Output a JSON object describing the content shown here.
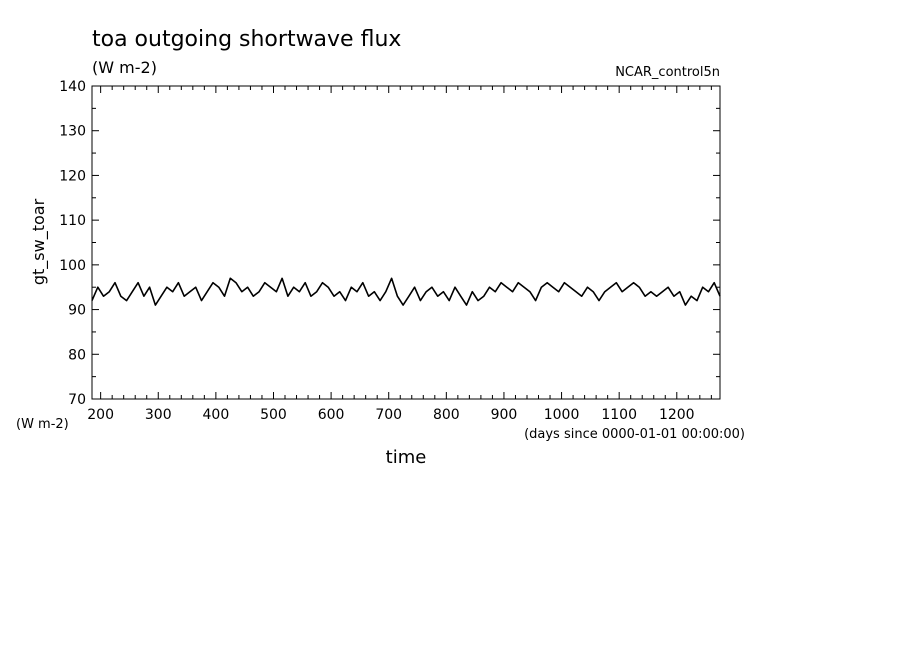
{
  "chart_data": {
    "type": "line",
    "title": "toa outgoing shortwave flux",
    "subtitle": "(W m-2)",
    "dataset_label": "NCAR_control5n",
    "xlabel": "time",
    "x_units": "(days since 0000-01-01 00:00:00)",
    "ylabel": "gt_sw_toar",
    "y_units": "(W m-2)",
    "xlim": [
      185,
      1275
    ],
    "ylim": [
      70,
      140
    ],
    "x_ticks": [
      200,
      300,
      400,
      500,
      600,
      700,
      800,
      900,
      1000,
      1100,
      1200
    ],
    "y_ticks": [
      70,
      80,
      90,
      100,
      110,
      120,
      130,
      140
    ],
    "line_color": "#000000",
    "grid": false,
    "series": [
      {
        "x": [
          185,
          195,
          205,
          215,
          225,
          235,
          245,
          255,
          265,
          275,
          285,
          295,
          305,
          315,
          325,
          335,
          345,
          355,
          365,
          375,
          385,
          395,
          405,
          415,
          425,
          435,
          445,
          455,
          465,
          475,
          485,
          495,
          505,
          515,
          525,
          535,
          545,
          555,
          565,
          575,
          585,
          595,
          605,
          615,
          625,
          635,
          645,
          655,
          665,
          675,
          685,
          695,
          705,
          715,
          725,
          735,
          745,
          755,
          765,
          775,
          785,
          795,
          805,
          815,
          825,
          835,
          845,
          855,
          865,
          875,
          885,
          895,
          905,
          915,
          925,
          935,
          945,
          955,
          965,
          975,
          985,
          995,
          1005,
          1015,
          1025,
          1035,
          1045,
          1055,
          1065,
          1075,
          1085,
          1095,
          1105,
          1115,
          1125,
          1135,
          1145,
          1155,
          1165,
          1175,
          1185,
          1195,
          1205,
          1215,
          1225,
          1235,
          1245,
          1255,
          1265,
          1275
        ],
        "values": [
          92,
          95,
          93,
          94,
          96,
          93,
          92,
          94,
          96,
          93,
          95,
          91,
          93,
          95,
          94,
          96,
          93,
          94,
          95,
          92,
          94,
          96,
          95,
          93,
          97,
          96,
          94,
          95,
          93,
          94,
          96,
          95,
          94,
          97,
          93,
          95,
          94,
          96,
          93,
          94,
          96,
          95,
          93,
          94,
          92,
          95,
          94,
          96,
          93,
          94,
          92,
          94,
          97,
          93,
          91,
          93,
          95,
          92,
          94,
          95,
          93,
          94,
          92,
          95,
          93,
          91,
          94,
          92,
          93,
          95,
          94,
          96,
          95,
          94,
          96,
          95,
          94,
          92,
          95,
          96,
          95,
          94,
          96,
          95,
          94,
          93,
          95,
          94,
          92,
          94,
          95,
          96,
          94,
          95,
          96,
          95,
          93,
          94,
          93,
          94,
          95,
          93,
          94,
          91,
          93,
          92,
          95,
          94,
          96,
          93
        ]
      }
    ]
  }
}
